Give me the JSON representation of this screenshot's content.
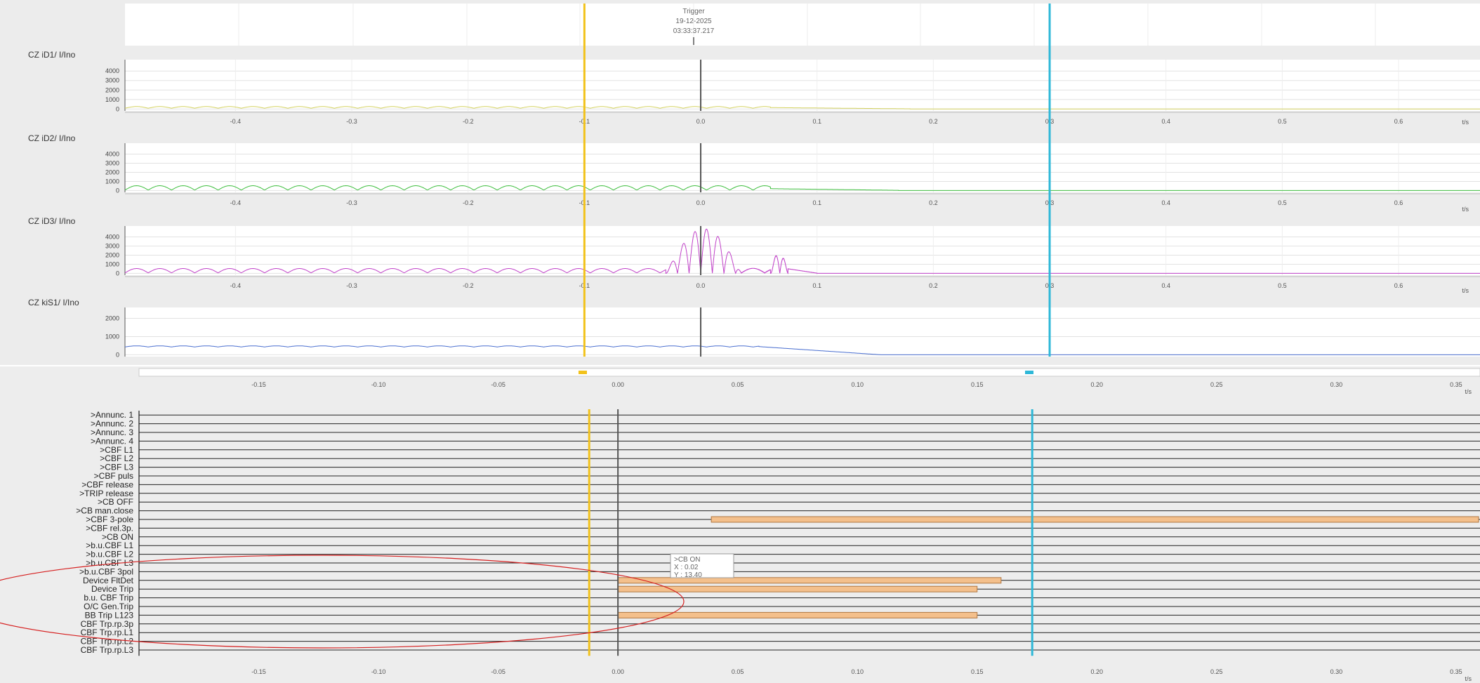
{
  "trigger": {
    "label": "Trigger",
    "date": "19-12-2025",
    "time": "03:33:37.217"
  },
  "colors": {
    "cursor1": "#f2c21b",
    "cursor2": "#2fb8d8",
    "trigger": "#555555",
    "annotation": "#d62020",
    "bar": "#f4c08c",
    "bar_edge": "#b07640"
  },
  "cursors": {
    "analog_a": -0.1,
    "analog_b": 0.3,
    "binary_a": -0.012,
    "binary_b": 0.173
  },
  "chart_data": [
    {
      "type": "line",
      "title": "CZ iD1/ I/Ino",
      "xlabel": "t/s",
      "xticks": [
        -0.4,
        -0.3,
        -0.2,
        -0.1,
        0.0,
        0.1,
        0.2,
        0.3,
        0.4,
        0.5,
        0.6
      ],
      "xtick_labels": [
        "-0.4",
        "-0.3",
        "-0.2",
        "-0.1",
        "0.0",
        "0.1",
        "0.2",
        "0.3",
        "0.4",
        "0.5",
        "0.6"
      ],
      "yticks": [
        0,
        1000,
        2000,
        3000,
        4000
      ],
      "ytick_labels": [
        "0",
        "1000",
        "2000",
        "3000",
        "4000"
      ],
      "xlim": [
        -0.495,
        0.67
      ],
      "ylim": [
        -200,
        5200
      ],
      "series": [
        {
          "color": "#d4d260",
          "segments": [
            {
              "kind": "ripple",
              "x0": -0.495,
              "x1": 0.06,
              "base": 80,
              "amp": 180,
              "period": 0.02
            },
            {
              "kind": "decay",
              "x0": 0.06,
              "x1": 0.18,
              "y0": 150,
              "y1": 20
            },
            {
              "kind": "flat",
              "x0": 0.18,
              "x1": 0.67,
              "y": 0
            }
          ]
        }
      ]
    },
    {
      "type": "line",
      "title": "CZ iD2/ I/Ino",
      "xlabel": "t/s",
      "xticks": [
        -0.4,
        -0.3,
        -0.2,
        -0.1,
        0.0,
        0.1,
        0.2,
        0.3,
        0.4,
        0.5,
        0.6
      ],
      "xtick_labels": [
        "-0.4",
        "-0.3",
        "-0.2",
        "-0.1",
        "0.0",
        "0.1",
        "0.2",
        "0.3",
        "0.4",
        "0.5",
        "0.6"
      ],
      "yticks": [
        0,
        1000,
        2000,
        3000,
        4000
      ],
      "ytick_labels": [
        "0",
        "1000",
        "2000",
        "3000",
        "4000"
      ],
      "xlim": [
        -0.495,
        0.67
      ],
      "ylim": [
        -200,
        5200
      ],
      "series": [
        {
          "color": "#3fbf3f",
          "segments": [
            {
              "kind": "ripple",
              "x0": -0.495,
              "x1": 0.06,
              "base": 50,
              "amp": 480,
              "period": 0.02
            },
            {
              "kind": "decay",
              "x0": 0.06,
              "x1": 0.17,
              "y0": 200,
              "y1": 20
            },
            {
              "kind": "flat",
              "x0": 0.17,
              "x1": 0.67,
              "y": 0
            }
          ]
        }
      ]
    },
    {
      "type": "line",
      "title": "CZ iD3/ I/Ino",
      "xlabel": "t/s",
      "xticks": [
        -0.4,
        -0.3,
        -0.2,
        -0.1,
        0.0,
        0.1,
        0.2,
        0.3,
        0.4,
        0.5,
        0.6
      ],
      "xtick_labels": [
        "-0.4",
        "-0.3",
        "-0.2",
        "-0.1",
        "0.0",
        "0.1",
        "0.2",
        "0.3",
        "0.4",
        "0.5",
        "0.6"
      ],
      "yticks": [
        0,
        1000,
        2000,
        3000,
        4000
      ],
      "ytick_labels": [
        "0",
        "1000",
        "2000",
        "3000",
        "4000"
      ],
      "xlim": [
        -0.495,
        0.67
      ],
      "ylim": [
        -200,
        5200
      ],
      "series": [
        {
          "color": "#c040c8",
          "segments": [
            {
              "kind": "ripple",
              "x0": -0.495,
              "x1": -0.03,
              "base": 50,
              "amp": 480,
              "period": 0.02
            },
            {
              "kind": "burst",
              "x0": -0.03,
              "x1": 0.035,
              "peak": 4900,
              "period": 0.01
            },
            {
              "kind": "ripple",
              "x0": 0.035,
              "x1": 0.06,
              "base": 50,
              "amp": 500,
              "period": 0.02
            },
            {
              "kind": "burst",
              "x0": 0.06,
              "x1": 0.075,
              "peak": 2400,
              "period": 0.008
            },
            {
              "kind": "decay",
              "x0": 0.075,
              "x1": 0.1,
              "y0": 500,
              "y1": 20
            },
            {
              "kind": "flat",
              "x0": 0.1,
              "x1": 0.67,
              "y": 0
            }
          ]
        }
      ]
    },
    {
      "type": "line",
      "title": "CZ kiS1/ I/Ino",
      "xlabel": "t/s",
      "xticks": [],
      "xtick_labels": [],
      "yticks": [
        0,
        1000,
        2000
      ],
      "ytick_labels": [
        "0",
        "1000",
        "2000"
      ],
      "xlim": [
        -0.495,
        0.67
      ],
      "ylim": [
        -100,
        2600
      ],
      "series": [
        {
          "color": "#4a6fd0",
          "segments": [
            {
              "kind": "ripple",
              "x0": -0.495,
              "x1": 0.05,
              "base": 430,
              "amp": 60,
              "period": 0.02
            },
            {
              "kind": "decay",
              "x0": 0.05,
              "x1": 0.155,
              "y0": 450,
              "y1": 0
            },
            {
              "kind": "flat",
              "x0": 0.155,
              "x1": 0.67,
              "y": 0
            }
          ]
        }
      ]
    },
    {
      "type": "bar",
      "title": "",
      "xlabel": "t/s",
      "xticks": [
        -0.15,
        -0.1,
        -0.05,
        0.0,
        0.05,
        0.1,
        0.15,
        0.2,
        0.25,
        0.3,
        0.35
      ],
      "xtick_labels": [
        "-0.15",
        "-0.10",
        "-0.05",
        "0.00",
        "0.05",
        "0.10",
        "0.15",
        "0.20",
        "0.25",
        "0.30",
        "0.35"
      ],
      "xlim": [
        -0.2,
        0.36
      ],
      "categories": [
        ">Annunc. 1",
        ">Annunc. 2",
        ">Annunc. 3",
        ">Annunc. 4",
        ">CBF L1",
        ">CBF L2",
        ">CBF L3",
        ">CBF puls",
        ">CBF release",
        ">TRIP release",
        ">CB OFF",
        ">CB man.close",
        ">CBF 3-pole",
        ">CBF rel.3p.",
        ">CB ON",
        ">b.u.CBF L1",
        ">b.u.CBF L2",
        ">b.u.CBF L3",
        ">b.u.CBF 3pol",
        "Device FltDet",
        "Device Trip",
        "b.u. CBF Trip",
        "O/C Gen.Trip",
        "BB Trip L123",
        "CBF Trp.rp.3p",
        "CBF Trp.rp.L1",
        "CBF Trp.rp.L2",
        "CBF Trp.rp.L3"
      ],
      "intervals": [
        {
          "category": ">CBF 3-pole",
          "start": 0.039,
          "end": 0.36
        },
        {
          "category": "Device FltDet",
          "start": 0.0,
          "end": 0.16
        },
        {
          "category": "Device Trip",
          "start": 0.0,
          "end": 0.15
        },
        {
          "category": "BB Trip L123",
          "start": 0.0,
          "end": 0.15
        }
      ],
      "tooltip": {
        "lines": [
          ">CB ON",
          "X : 0.02",
          "Y : 13.40"
        ]
      }
    }
  ]
}
